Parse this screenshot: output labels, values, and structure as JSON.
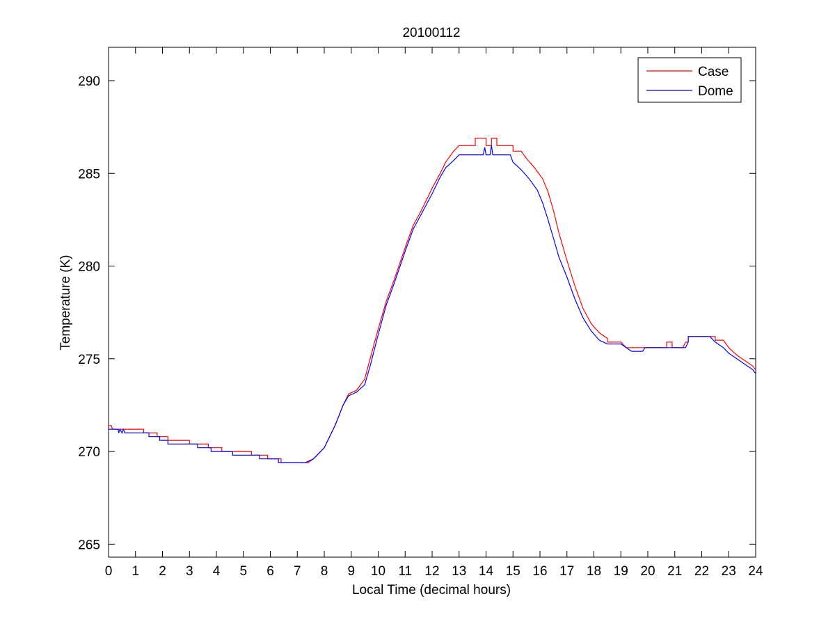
{
  "chart_data": {
    "type": "line",
    "title": "20100112",
    "xlabel": "Local Time (decimal hours)",
    "ylabel": "Temperature (K)",
    "xlim": [
      0,
      24
    ],
    "ylim": [
      264.3,
      291.8
    ],
    "xticks": [
      0,
      1,
      2,
      3,
      4,
      5,
      6,
      7,
      8,
      9,
      10,
      11,
      12,
      13,
      14,
      15,
      16,
      17,
      18,
      19,
      20,
      21,
      22,
      23,
      24
    ],
    "yticks": [
      265,
      270,
      275,
      280,
      285,
      290
    ],
    "grid": false,
    "legend": {
      "placement": "top-right"
    },
    "colors": {
      "Case": "#ff0000",
      "Dome": "#0000ff"
    },
    "series": [
      {
        "name": "Case",
        "color": "#ff0000",
        "points": [
          [
            0,
            271.4
          ],
          [
            0.1,
            271.4
          ],
          [
            0.15,
            271.2
          ],
          [
            1.3,
            271.2
          ],
          [
            1.3,
            271.0
          ],
          [
            1.8,
            271.0
          ],
          [
            1.8,
            270.8
          ],
          [
            2.2,
            270.8
          ],
          [
            2.2,
            270.6
          ],
          [
            3.0,
            270.6
          ],
          [
            3.0,
            270.4
          ],
          [
            3.7,
            270.4
          ],
          [
            3.7,
            270.2
          ],
          [
            4.2,
            270.2
          ],
          [
            4.2,
            270.0
          ],
          [
            5.3,
            270.0
          ],
          [
            5.3,
            269.8
          ],
          [
            5.9,
            269.8
          ],
          [
            5.9,
            269.6
          ],
          [
            6.4,
            269.6
          ],
          [
            6.4,
            269.4
          ],
          [
            7.4,
            269.4
          ],
          [
            7.6,
            269.6
          ],
          [
            8.0,
            270.2
          ],
          [
            8.4,
            271.4
          ],
          [
            8.7,
            272.5
          ],
          [
            8.9,
            273.1
          ],
          [
            9.2,
            273.3
          ],
          [
            9.5,
            273.9
          ],
          [
            9.7,
            275.0
          ],
          [
            10.0,
            276.6
          ],
          [
            10.3,
            278.1
          ],
          [
            10.6,
            279.3
          ],
          [
            11.0,
            281.0
          ],
          [
            11.3,
            282.2
          ],
          [
            11.6,
            283.0
          ],
          [
            12.0,
            284.2
          ],
          [
            12.3,
            285.0
          ],
          [
            12.5,
            285.6
          ],
          [
            12.8,
            286.2
          ],
          [
            13.0,
            286.5
          ],
          [
            13.6,
            286.5
          ],
          [
            13.6,
            286.9
          ],
          [
            14.0,
            286.9
          ],
          [
            14.0,
            286.5
          ],
          [
            14.2,
            286.5
          ],
          [
            14.2,
            286.9
          ],
          [
            14.4,
            286.9
          ],
          [
            14.4,
            286.5
          ],
          [
            15.0,
            286.5
          ],
          [
            15.0,
            286.2
          ],
          [
            15.3,
            286.2
          ],
          [
            15.5,
            285.8
          ],
          [
            15.8,
            285.3
          ],
          [
            16.1,
            284.7
          ],
          [
            16.3,
            284.0
          ],
          [
            16.5,
            283.0
          ],
          [
            16.7,
            281.8
          ],
          [
            17.0,
            280.3
          ],
          [
            17.3,
            278.9
          ],
          [
            17.6,
            277.7
          ],
          [
            17.9,
            276.9
          ],
          [
            18.2,
            276.4
          ],
          [
            18.5,
            276.1
          ],
          [
            18.5,
            275.9
          ],
          [
            19.0,
            275.9
          ],
          [
            19.2,
            275.6
          ],
          [
            20.7,
            275.6
          ],
          [
            20.7,
            275.9
          ],
          [
            20.9,
            275.9
          ],
          [
            20.9,
            275.6
          ],
          [
            21.3,
            275.6
          ],
          [
            21.4,
            275.9
          ],
          [
            21.5,
            275.9
          ],
          [
            21.5,
            276.2
          ],
          [
            22.5,
            276.2
          ],
          [
            22.5,
            276.0
          ],
          [
            22.8,
            276.0
          ],
          [
            23.0,
            275.6
          ],
          [
            23.3,
            275.2
          ],
          [
            23.6,
            274.9
          ],
          [
            23.9,
            274.6
          ],
          [
            24.0,
            274.4
          ]
        ]
      },
      {
        "name": "Dome",
        "color": "#0000ff",
        "points": [
          [
            0,
            271.2
          ],
          [
            0.35,
            271.2
          ],
          [
            0.38,
            271.0
          ],
          [
            0.42,
            271.2
          ],
          [
            0.5,
            271.0
          ],
          [
            0.55,
            271.2
          ],
          [
            0.6,
            271.0
          ],
          [
            1.5,
            271.0
          ],
          [
            1.5,
            270.8
          ],
          [
            1.9,
            270.8
          ],
          [
            1.9,
            270.6
          ],
          [
            2.2,
            270.6
          ],
          [
            2.2,
            270.4
          ],
          [
            3.3,
            270.4
          ],
          [
            3.3,
            270.2
          ],
          [
            3.8,
            270.2
          ],
          [
            3.8,
            270.0
          ],
          [
            4.6,
            270.0
          ],
          [
            4.6,
            269.8
          ],
          [
            5.6,
            269.8
          ],
          [
            5.6,
            269.6
          ],
          [
            6.3,
            269.6
          ],
          [
            6.3,
            269.4
          ],
          [
            7.3,
            269.4
          ],
          [
            7.6,
            269.6
          ],
          [
            8.0,
            270.2
          ],
          [
            8.4,
            271.4
          ],
          [
            8.7,
            272.5
          ],
          [
            8.9,
            273.0
          ],
          [
            9.2,
            273.2
          ],
          [
            9.5,
            273.6
          ],
          [
            9.7,
            274.6
          ],
          [
            10.0,
            276.3
          ],
          [
            10.3,
            277.9
          ],
          [
            10.6,
            279.1
          ],
          [
            11.0,
            280.8
          ],
          [
            11.3,
            282.0
          ],
          [
            11.6,
            282.8
          ],
          [
            12.0,
            283.9
          ],
          [
            12.3,
            284.8
          ],
          [
            12.5,
            285.3
          ],
          [
            12.8,
            285.7
          ],
          [
            13.0,
            286.0
          ],
          [
            13.9,
            286.0
          ],
          [
            13.95,
            286.4
          ],
          [
            14.0,
            286.0
          ],
          [
            14.15,
            286.0
          ],
          [
            14.2,
            286.5
          ],
          [
            14.25,
            286.0
          ],
          [
            14.9,
            286.0
          ],
          [
            15.0,
            285.6
          ],
          [
            15.3,
            285.2
          ],
          [
            15.6,
            284.7
          ],
          [
            15.9,
            284.1
          ],
          [
            16.1,
            283.4
          ],
          [
            16.3,
            282.5
          ],
          [
            16.5,
            281.5
          ],
          [
            16.7,
            280.5
          ],
          [
            17.0,
            279.4
          ],
          [
            17.3,
            278.2
          ],
          [
            17.6,
            277.2
          ],
          [
            17.9,
            276.5
          ],
          [
            18.2,
            276.0
          ],
          [
            18.5,
            275.8
          ],
          [
            19.0,
            275.8
          ],
          [
            19.4,
            275.4
          ],
          [
            19.8,
            275.4
          ],
          [
            19.9,
            275.6
          ],
          [
            21.4,
            275.6
          ],
          [
            21.5,
            275.9
          ],
          [
            21.5,
            276.2
          ],
          [
            22.3,
            276.2
          ],
          [
            22.5,
            275.9
          ],
          [
            22.8,
            275.6
          ],
          [
            23.0,
            275.3
          ],
          [
            23.3,
            275.0
          ],
          [
            23.6,
            274.7
          ],
          [
            23.9,
            274.4
          ],
          [
            24.0,
            274.2
          ]
        ]
      }
    ]
  }
}
